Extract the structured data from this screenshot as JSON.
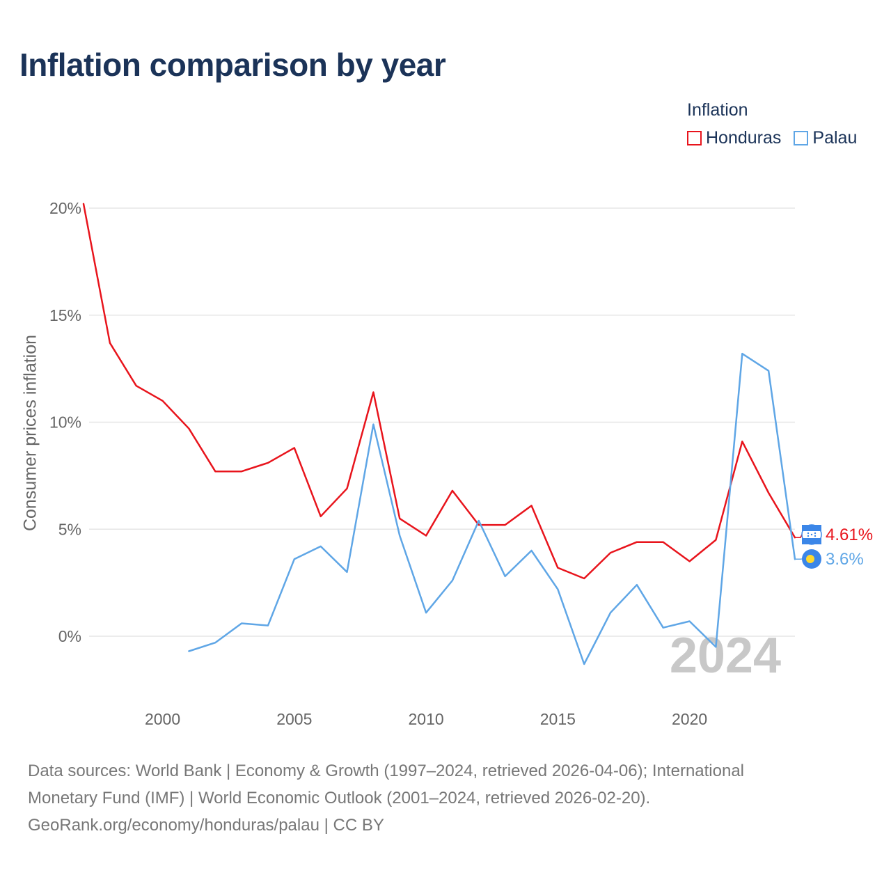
{
  "title": "Inflation comparison by year",
  "legend": {
    "title": "Inflation",
    "items": [
      {
        "name": "Honduras",
        "color": "#e8141c"
      },
      {
        "name": "Palau",
        "color": "#5fa6e6"
      }
    ]
  },
  "ylabel": "Consumer prices inflation",
  "year_overlay": "2024",
  "end_labels": {
    "honduras": "4.61%",
    "palau": "3.6%"
  },
  "source": {
    "line1": "Data sources: World Bank | Economy & Growth (1997–2024, retrieved 2026-04-06); International",
    "line2": "Monetary Fund (IMF) | World Economic Outlook (2001–2024, retrieved 2026-02-20).",
    "line3": "GeoRank.org/economy/honduras/palau | CC BY"
  },
  "chart_data": {
    "type": "line",
    "title": "Inflation comparison by year",
    "xlabel": "",
    "ylabel": "Consumer prices inflation",
    "xlim": [
      1997,
      2024
    ],
    "ylim": [
      -3,
      20
    ],
    "x_ticks": [
      2000,
      2005,
      2010,
      2015,
      2020
    ],
    "y_ticks": [
      {
        "value": 0,
        "label": "0%"
      },
      {
        "value": 5,
        "label": "5%"
      },
      {
        "value": 10,
        "label": "10%"
      },
      {
        "value": 15,
        "label": "15%"
      },
      {
        "value": 20,
        "label": "20%"
      }
    ],
    "grid": true,
    "legend_position": "top-right",
    "series": [
      {
        "name": "Honduras",
        "color": "#e8141c",
        "x": [
          1997,
          1998,
          1999,
          2000,
          2001,
          2002,
          2003,
          2004,
          2005,
          2006,
          2007,
          2008,
          2009,
          2010,
          2011,
          2012,
          2013,
          2014,
          2015,
          2016,
          2017,
          2018,
          2019,
          2020,
          2021,
          2022,
          2023,
          2024
        ],
        "values": [
          20.2,
          13.7,
          11.7,
          11.0,
          9.7,
          7.7,
          7.7,
          8.1,
          8.8,
          5.6,
          6.9,
          11.4,
          5.5,
          4.7,
          6.8,
          5.2,
          5.2,
          6.1,
          3.2,
          2.7,
          3.9,
          4.4,
          4.4,
          3.5,
          4.5,
          9.1,
          6.7,
          4.61
        ]
      },
      {
        "name": "Palau",
        "color": "#5fa6e6",
        "x": [
          2001,
          2002,
          2003,
          2004,
          2005,
          2006,
          2007,
          2008,
          2009,
          2010,
          2011,
          2012,
          2013,
          2014,
          2015,
          2016,
          2017,
          2018,
          2019,
          2020,
          2021,
          2022,
          2023,
          2024
        ],
        "values": [
          -0.7,
          -0.3,
          0.6,
          0.5,
          3.6,
          4.2,
          3.0,
          9.9,
          4.7,
          1.1,
          2.6,
          5.4,
          2.8,
          4.0,
          2.2,
          -1.3,
          1.1,
          2.4,
          0.4,
          0.7,
          -0.5,
          13.2,
          12.4,
          3.6
        ]
      }
    ]
  }
}
